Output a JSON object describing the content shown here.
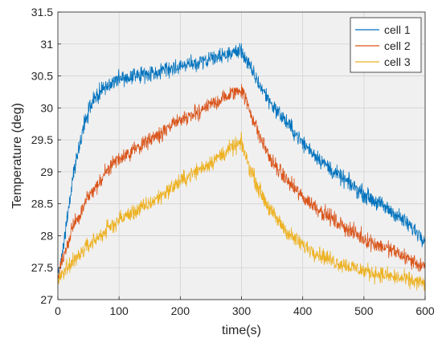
{
  "chart_data": {
    "type": "line",
    "title": "",
    "xlabel": "time(s)",
    "ylabel": "Temperature (deg)",
    "xlim": [
      0,
      600
    ],
    "ylim": [
      27,
      31.5
    ],
    "xticks": [
      0,
      100,
      200,
      300,
      400,
      500,
      600
    ],
    "yticks": [
      27,
      27.5,
      28,
      28.5,
      29,
      29.5,
      30,
      30.5,
      31,
      31.5
    ],
    "xtick_labels": [
      "0",
      "100",
      "200",
      "300",
      "400",
      "500",
      "600"
    ],
    "ytick_labels": [
      "27",
      "27.5",
      "28",
      "28.5",
      "29",
      "29.5",
      "30",
      "30.5",
      "31",
      "31.5"
    ],
    "grid": true,
    "legend_position": "top-right",
    "noise_amplitude": 0.12,
    "series": [
      {
        "name": "cell 1",
        "color": "#0072BD",
        "points": [
          [
            0,
            27.35
          ],
          [
            10,
            27.9
          ],
          [
            20,
            28.6
          ],
          [
            30,
            29.2
          ],
          [
            40,
            29.6
          ],
          [
            50,
            29.95
          ],
          [
            60,
            30.15
          ],
          [
            80,
            30.35
          ],
          [
            100,
            30.45
          ],
          [
            130,
            30.5
          ],
          [
            150,
            30.55
          ],
          [
            200,
            30.65
          ],
          [
            250,
            30.75
          ],
          [
            280,
            30.85
          ],
          [
            300,
            30.9
          ],
          [
            310,
            30.7
          ],
          [
            330,
            30.35
          ],
          [
            350,
            30.05
          ],
          [
            380,
            29.7
          ],
          [
            400,
            29.45
          ],
          [
            450,
            29.0
          ],
          [
            500,
            28.65
          ],
          [
            550,
            28.35
          ],
          [
            600,
            27.95
          ]
        ]
      },
      {
        "name": "cell 2",
        "color": "#D95319",
        "points": [
          [
            0,
            27.35
          ],
          [
            10,
            27.7
          ],
          [
            20,
            28.0
          ],
          [
            30,
            28.25
          ],
          [
            50,
            28.6
          ],
          [
            75,
            28.95
          ],
          [
            100,
            29.2
          ],
          [
            150,
            29.5
          ],
          [
            200,
            29.8
          ],
          [
            250,
            30.05
          ],
          [
            280,
            30.2
          ],
          [
            300,
            30.3
          ],
          [
            310,
            30.05
          ],
          [
            330,
            29.55
          ],
          [
            350,
            29.15
          ],
          [
            380,
            28.8
          ],
          [
            400,
            28.6
          ],
          [
            450,
            28.25
          ],
          [
            500,
            27.95
          ],
          [
            550,
            27.75
          ],
          [
            600,
            27.5
          ]
        ]
      },
      {
        "name": "cell 3",
        "color": "#EDB120",
        "points": [
          [
            0,
            27.3
          ],
          [
            20,
            27.55
          ],
          [
            50,
            27.85
          ],
          [
            100,
            28.25
          ],
          [
            150,
            28.5
          ],
          [
            200,
            28.85
          ],
          [
            250,
            29.15
          ],
          [
            280,
            29.35
          ],
          [
            300,
            29.45
          ],
          [
            310,
            29.15
          ],
          [
            330,
            28.7
          ],
          [
            350,
            28.35
          ],
          [
            380,
            28.0
          ],
          [
            400,
            27.85
          ],
          [
            450,
            27.6
          ],
          [
            500,
            27.45
          ],
          [
            550,
            27.35
          ],
          [
            600,
            27.25
          ]
        ]
      }
    ]
  }
}
